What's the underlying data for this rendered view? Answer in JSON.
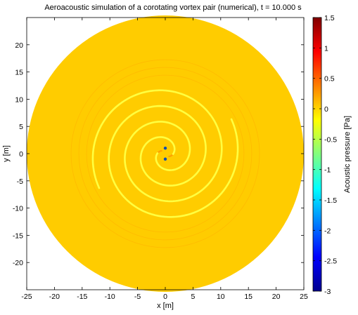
{
  "chart_data": {
    "type": "heatmap",
    "title": "Aeroacoustic simulation of a corotating vortex pair (numerical), t =  10.000 s",
    "xlabel": "x [m]",
    "ylabel": "y [m]",
    "xlim": [
      -25,
      25
    ],
    "ylim": [
      -25,
      25
    ],
    "x_ticks": [
      -25,
      -20,
      -15,
      -10,
      -5,
      0,
      5,
      10,
      15,
      20,
      25
    ],
    "y_ticks": [
      -20,
      -15,
      -10,
      -5,
      0,
      5,
      10,
      15,
      20
    ],
    "colorbar": {
      "label": "Acoustic pressure [Pa]",
      "range": [
        -3,
        1.5
      ],
      "ticks": [
        1.5,
        1,
        0.5,
        0,
        -0.5,
        -1,
        -1.5,
        -2,
        -2.5,
        -3
      ],
      "colormap": "jet"
    },
    "domain": {
      "shape": "circle",
      "center": [
        0,
        0
      ],
      "radius": 25
    },
    "background_value": 0.05,
    "vortices": [
      {
        "x": 0.0,
        "y": 1.0
      },
      {
        "x": 0.0,
        "y": -1.0
      }
    ],
    "spiral_arms": 2,
    "grid": false
  },
  "colors": {
    "field": "#ffcc00",
    "crest": "#ffff40",
    "trough": "#ff9c00",
    "vortex_core": "#1050b0",
    "jet": [
      "#00008f",
      "#0000ff",
      "#0080ff",
      "#00ffff",
      "#80ff80",
      "#ffff00",
      "#ff8000",
      "#ff0000",
      "#800000"
    ]
  }
}
